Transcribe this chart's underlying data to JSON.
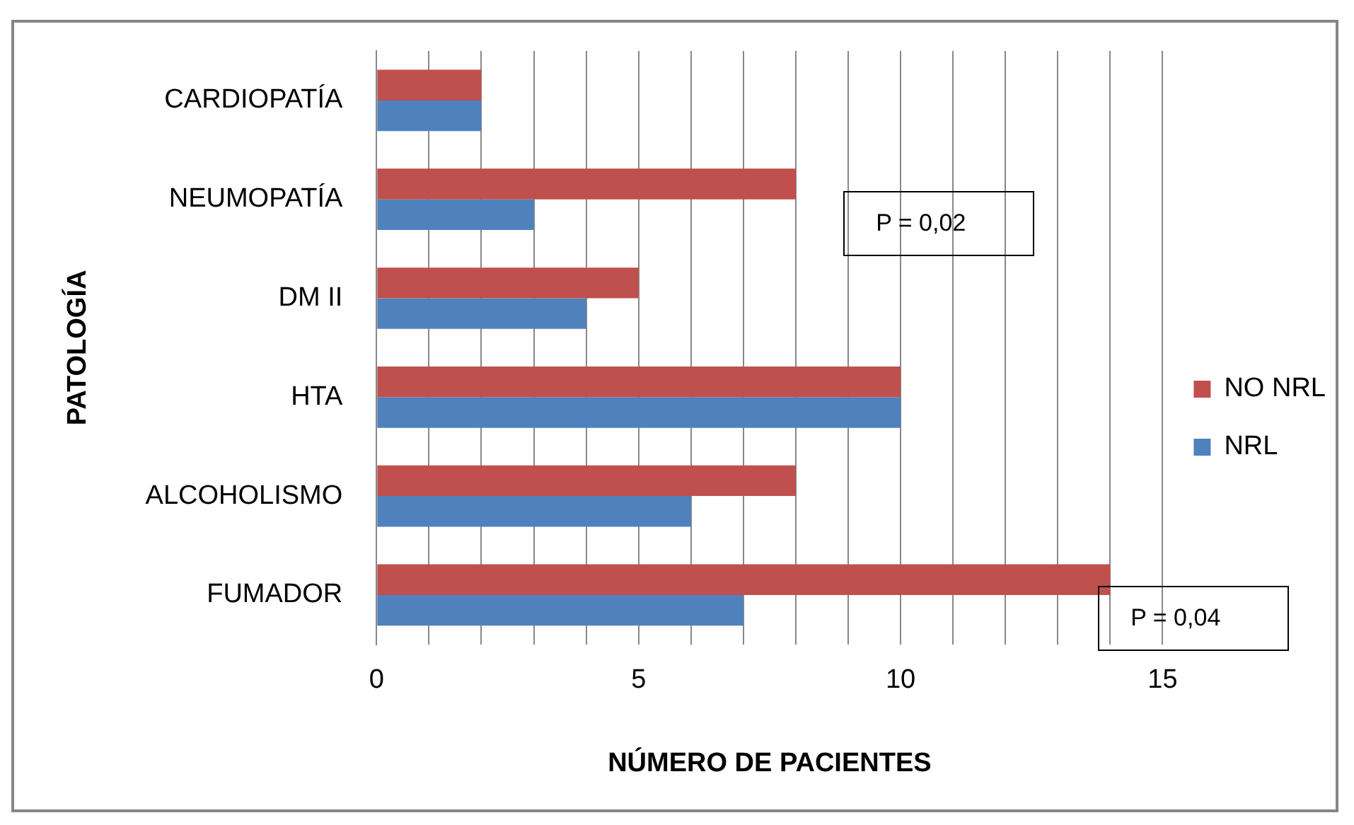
{
  "chart_data": {
    "type": "bar",
    "orientation": "horizontal",
    "xlabel": "NÚMERO DE PACIENTES",
    "ylabel": "PATOLOGÍA",
    "categories": [
      "CARDIOPATÍA",
      "NEUMOPATÍA",
      "DM II",
      "HTA",
      "ALCOHOLISMO",
      "FUMADOR"
    ],
    "series": [
      {
        "name": "NO NRL",
        "color": "#c0504d",
        "values": [
          2,
          8,
          5,
          10,
          8,
          14
        ]
      },
      {
        "name": "NRL",
        "color": "#4f81bd",
        "values": [
          2,
          3,
          4,
          10,
          6,
          7
        ]
      }
    ],
    "xlim": [
      0,
      15
    ],
    "xticks": [
      0,
      {
        "value": 1,
        "label": null
      },
      {
        "value": 2,
        "label": null
      },
      {
        "value": 3,
        "label": null
      },
      {
        "value": 4,
        "label": null
      },
      5,
      {
        "value": 6,
        "label": null
      },
      {
        "value": 7,
        "label": null
      },
      {
        "value": 8,
        "label": null
      },
      {
        "value": 9,
        "label": null
      },
      10,
      {
        "value": 11,
        "label": null
      },
      {
        "value": 12,
        "label": null
      },
      {
        "value": 13,
        "label": null
      },
      {
        "value": 14,
        "label": null
      },
      15
    ],
    "grid": "x",
    "legend": "right",
    "annotations": [
      "P = 0,02",
      "P = 0,04"
    ]
  }
}
